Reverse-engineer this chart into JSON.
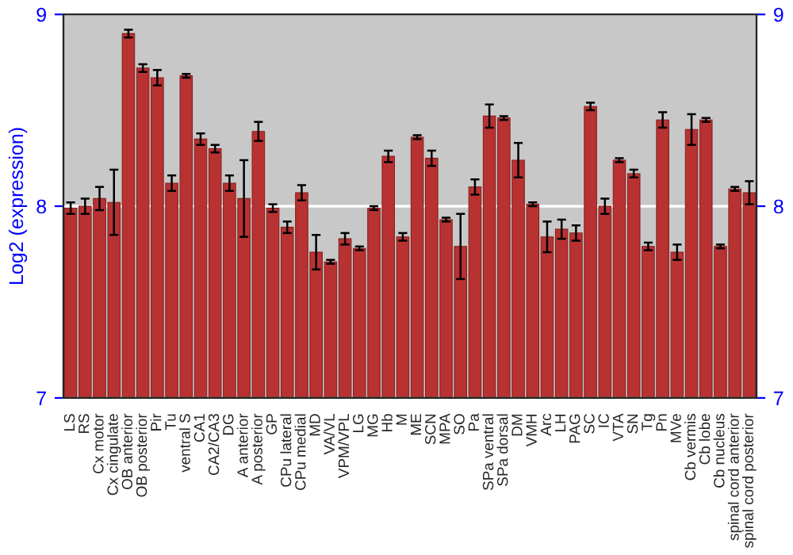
{
  "chart_data": {
    "type": "bar",
    "ylabel": "Log2 (expression)",
    "categories": [
      "LS",
      "RS",
      "Cx motor",
      "Cx cingulate",
      "OB anterior",
      "OB posterior",
      "Pir",
      "Tu",
      "ventral S",
      "CA1",
      "CA2/CA3",
      "DG",
      "A anterior",
      "A posterior",
      "GP",
      "CPu lateral",
      "CPu medial",
      "MD",
      "VA/VL",
      "VPM/VPL",
      "LG",
      "MG",
      "Hb",
      "M",
      "ME",
      "SCN",
      "MPA",
      "SO",
      "Pa",
      "SPa ventral",
      "SPa dorsal",
      "DM",
      "VMH",
      "Arc",
      "LH",
      "PAG",
      "SC",
      "IC",
      "VTA",
      "SN",
      "Tg",
      "Pn",
      "MVe",
      "Cb vermis",
      "Cb lobe",
      "Cb nucleus",
      "spinal cord anterior",
      "spinal cord posterior"
    ],
    "values": [
      7.99,
      8.0,
      8.04,
      8.02,
      8.9,
      8.72,
      8.67,
      8.12,
      8.68,
      8.35,
      8.3,
      8.12,
      8.04,
      8.39,
      7.99,
      7.89,
      8.07,
      7.76,
      7.71,
      7.83,
      7.78,
      7.99,
      8.26,
      7.84,
      8.36,
      8.25,
      7.93,
      7.79,
      8.1,
      8.47,
      8.46,
      8.24,
      8.01,
      7.84,
      7.88,
      7.86,
      8.52,
      8.0,
      8.24,
      8.17,
      7.79,
      8.45,
      7.76,
      8.4,
      8.45,
      7.79,
      8.09,
      8.07
    ],
    "errors": [
      0.03,
      0.04,
      0.06,
      0.17,
      0.02,
      0.02,
      0.04,
      0.04,
      0.01,
      0.03,
      0.02,
      0.04,
      0.2,
      0.05,
      0.02,
      0.03,
      0.04,
      0.09,
      0.01,
      0.03,
      0.01,
      0.01,
      0.03,
      0.02,
      0.01,
      0.04,
      0.01,
      0.17,
      0.04,
      0.06,
      0.01,
      0.09,
      0.01,
      0.08,
      0.05,
      0.04,
      0.02,
      0.04,
      0.01,
      0.02,
      0.02,
      0.04,
      0.04,
      0.08,
      0.01,
      0.01,
      0.01,
      0.06
    ],
    "color": "#b83232",
    "ylim": [
      7,
      9
    ],
    "yticks": [
      7,
      8,
      9
    ],
    "y2lim": [
      7,
      9
    ],
    "y2ticks": [
      7,
      8,
      9
    ],
    "grid": "y"
  }
}
